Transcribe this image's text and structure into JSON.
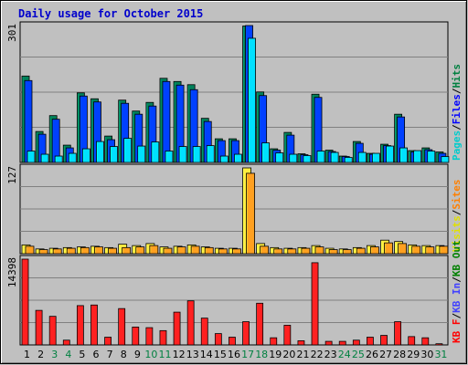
{
  "chart_data": [
    {
      "type": "bar",
      "title": "Daily usage for October 2015",
      "ymax_label": "301",
      "ylim": [
        0,
        301
      ],
      "grid": true,
      "legend": {
        "placement": "right-vertical",
        "separator": "/",
        "items": [
          {
            "text": "Pages",
            "color": "#00cccc"
          },
          {
            "text": "Files",
            "color": "#0000ff"
          },
          {
            "text": "Hits",
            "color": "#008040"
          }
        ]
      },
      "categories": [
        "1",
        "2",
        "3",
        "4",
        "5",
        "6",
        "7",
        "8",
        "9",
        "10",
        "11",
        "12",
        "13",
        "14",
        "15",
        "16",
        "17",
        "18",
        "19",
        "20",
        "21",
        "22",
        "23",
        "24",
        "25",
        "26",
        "27",
        "28",
        "29",
        "30",
        "31"
      ],
      "weekend_days": [
        "3",
        "4",
        "10",
        "11",
        "17",
        "18",
        "24",
        "25",
        "31"
      ],
      "series": [
        {
          "name": "Hits",
          "color": "#00805a",
          "values": [
            190,
            68,
            103,
            38,
            153,
            140,
            58,
            137,
            113,
            132,
            185,
            178,
            171,
            97,
            52,
            52,
            300,
            155,
            30,
            66,
            19,
            150,
            27,
            14,
            46,
            20,
            40,
            106,
            26,
            32,
            23
          ]
        },
        {
          "name": "Files",
          "color": "#0040ff",
          "values": [
            180,
            62,
            95,
            32,
            146,
            133,
            50,
            130,
            106,
            124,
            178,
            170,
            160,
            90,
            48,
            48,
            301,
            147,
            27,
            60,
            17,
            143,
            24,
            13,
            42,
            18,
            37,
            100,
            23,
            28,
            20
          ]
        },
        {
          "name": "Pages",
          "color": "#00e0ff",
          "values": [
            25,
            18,
            14,
            20,
            30,
            46,
            35,
            53,
            36,
            45,
            25,
            35,
            35,
            37,
            14,
            18,
            273,
            43,
            21,
            18,
            15,
            25,
            22,
            11,
            22,
            20,
            36,
            32,
            26,
            25,
            13
          ]
        }
      ]
    },
    {
      "type": "bar",
      "ymax_label": "127",
      "ylim": [
        0,
        127
      ],
      "grid": true,
      "legend": {
        "placement": "right-vertical",
        "separator": "/",
        "items": [
          {
            "text": "Visits",
            "color": "#e0e000"
          },
          {
            "text": "Sites",
            "color": "#ff8000"
          }
        ]
      },
      "categories": [
        "1",
        "2",
        "3",
        "4",
        "5",
        "6",
        "7",
        "8",
        "9",
        "10",
        "11",
        "12",
        "13",
        "14",
        "15",
        "16",
        "17",
        "18",
        "19",
        "20",
        "21",
        "22",
        "23",
        "24",
        "25",
        "26",
        "27",
        "28",
        "29",
        "30",
        "31"
      ],
      "series": [
        {
          "name": "Visits",
          "color": "#ffee40",
          "values": [
            13,
            7,
            8,
            9,
            10,
            11,
            9,
            14,
            12,
            15,
            10,
            11,
            13,
            10,
            8,
            8,
            127,
            15,
            9,
            8,
            9,
            12,
            8,
            7,
            9,
            12,
            20,
            18,
            13,
            12,
            12
          ]
        },
        {
          "name": "Sites",
          "color": "#ffa020",
          "values": [
            11,
            6,
            7,
            8,
            9,
            10,
            8,
            9,
            10,
            12,
            8,
            10,
            11,
            9,
            7,
            7,
            119,
            11,
            7,
            7,
            8,
            10,
            6,
            6,
            8,
            10,
            16,
            15,
            11,
            10,
            11
          ]
        }
      ]
    },
    {
      "type": "bar",
      "ymax_label": "14398",
      "ylim": [
        0,
        14398
      ],
      "grid": true,
      "legend": {
        "placement": "right-vertical",
        "separator": "/",
        "items": [
          {
            "text": "KB F",
            "color": "#ff0000"
          },
          {
            "text": "KB In",
            "color": "#4040ff"
          },
          {
            "text": "KB Out",
            "color": "#008000"
          }
        ]
      },
      "categories": [
        "1",
        "2",
        "3",
        "4",
        "5",
        "6",
        "7",
        "8",
        "9",
        "10",
        "11",
        "12",
        "13",
        "14",
        "15",
        "16",
        "17",
        "18",
        "19",
        "20",
        "21",
        "22",
        "23",
        "24",
        "25",
        "26",
        "27",
        "28",
        "29",
        "30",
        "31"
      ],
      "series": [
        {
          "name": "KB F",
          "color": "#ff2020",
          "values": [
            14398,
            5800,
            4800,
            800,
            6600,
            6700,
            1300,
            6100,
            3000,
            2900,
            2400,
            5500,
            7400,
            4500,
            1900,
            1300,
            3900,
            7000,
            1200,
            3300,
            700,
            13800,
            600,
            600,
            800,
            1300,
            1600,
            3900,
            1400,
            1200,
            200
          ]
        }
      ]
    }
  ]
}
